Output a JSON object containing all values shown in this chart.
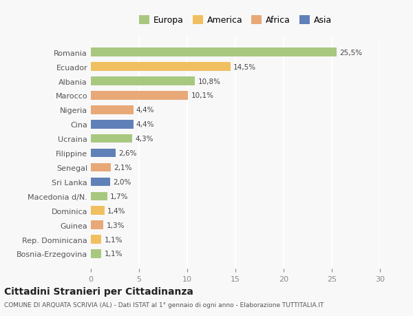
{
  "categories": [
    "Romania",
    "Ecuador",
    "Albania",
    "Marocco",
    "Nigeria",
    "Cina",
    "Ucraina",
    "Filippine",
    "Senegal",
    "Sri Lanka",
    "Macedonia d/N.",
    "Dominica",
    "Guinea",
    "Rep. Dominicana",
    "Bosnia-Erzegovina"
  ],
  "values": [
    25.5,
    14.5,
    10.8,
    10.1,
    4.4,
    4.4,
    4.3,
    2.6,
    2.1,
    2.0,
    1.7,
    1.4,
    1.3,
    1.1,
    1.1
  ],
  "labels": [
    "25,5%",
    "14,5%",
    "10,8%",
    "10,1%",
    "4,4%",
    "4,4%",
    "4,3%",
    "2,6%",
    "2,1%",
    "2,0%",
    "1,7%",
    "1,4%",
    "1,3%",
    "1,1%",
    "1,1%"
  ],
  "colors": [
    "#a8c880",
    "#f0c060",
    "#a8c880",
    "#e8a878",
    "#e8a878",
    "#6080b8",
    "#a8c880",
    "#6080b8",
    "#e8a878",
    "#6080b8",
    "#a8c880",
    "#f0c060",
    "#e8a878",
    "#f0c060",
    "#a8c880"
  ],
  "legend": {
    "Europa": "#a8c880",
    "America": "#f0c060",
    "Africa": "#e8a878",
    "Asia": "#6080b8"
  },
  "xlim": [
    0,
    30
  ],
  "xticks": [
    0,
    5,
    10,
    15,
    20,
    25,
    30
  ],
  "title": "Cittadini Stranieri per Cittadinanza",
  "subtitle": "COMUNE DI ARQUATA SCRIVIA (AL) - Dati ISTAT al 1° gennaio di ogni anno - Elaborazione TUTTITALIA.IT",
  "background_color": "#f8f8f8",
  "grid_color": "#ffffff"
}
